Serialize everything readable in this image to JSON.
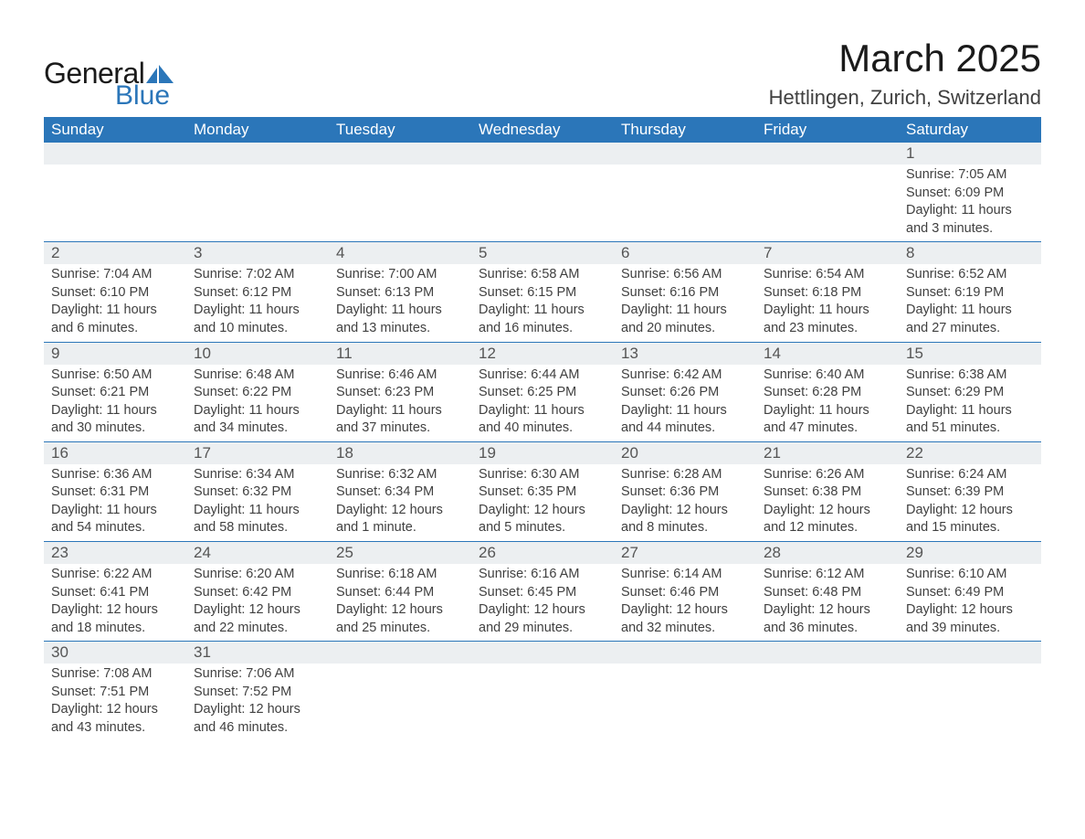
{
  "logo": {
    "text_general": "General",
    "text_blue": "Blue",
    "sail_color": "#2b76b9"
  },
  "title": "March 2025",
  "location": "Hettlingen, Zurich, Switzerland",
  "colors": {
    "header_bg": "#2b76b9",
    "header_text": "#ffffff",
    "daynum_bg": "#eceff1",
    "row_divider": "#2b76b9",
    "body_text": "#404040",
    "page_bg": "#ffffff"
  },
  "typography": {
    "title_fontsize": 42,
    "location_fontsize": 22,
    "weekday_fontsize": 17,
    "daynum_fontsize": 17,
    "detail_fontsize": 14.5,
    "font_family": "Arial"
  },
  "weekdays": [
    "Sunday",
    "Monday",
    "Tuesday",
    "Wednesday",
    "Thursday",
    "Friday",
    "Saturday"
  ],
  "weeks": [
    [
      null,
      null,
      null,
      null,
      null,
      null,
      {
        "d": "1",
        "sr": "Sunrise: 7:05 AM",
        "ss": "Sunset: 6:09 PM",
        "dl1": "Daylight: 11 hours",
        "dl2": "and 3 minutes."
      }
    ],
    [
      {
        "d": "2",
        "sr": "Sunrise: 7:04 AM",
        "ss": "Sunset: 6:10 PM",
        "dl1": "Daylight: 11 hours",
        "dl2": "and 6 minutes."
      },
      {
        "d": "3",
        "sr": "Sunrise: 7:02 AM",
        "ss": "Sunset: 6:12 PM",
        "dl1": "Daylight: 11 hours",
        "dl2": "and 10 minutes."
      },
      {
        "d": "4",
        "sr": "Sunrise: 7:00 AM",
        "ss": "Sunset: 6:13 PM",
        "dl1": "Daylight: 11 hours",
        "dl2": "and 13 minutes."
      },
      {
        "d": "5",
        "sr": "Sunrise: 6:58 AM",
        "ss": "Sunset: 6:15 PM",
        "dl1": "Daylight: 11 hours",
        "dl2": "and 16 minutes."
      },
      {
        "d": "6",
        "sr": "Sunrise: 6:56 AM",
        "ss": "Sunset: 6:16 PM",
        "dl1": "Daylight: 11 hours",
        "dl2": "and 20 minutes."
      },
      {
        "d": "7",
        "sr": "Sunrise: 6:54 AM",
        "ss": "Sunset: 6:18 PM",
        "dl1": "Daylight: 11 hours",
        "dl2": "and 23 minutes."
      },
      {
        "d": "8",
        "sr": "Sunrise: 6:52 AM",
        "ss": "Sunset: 6:19 PM",
        "dl1": "Daylight: 11 hours",
        "dl2": "and 27 minutes."
      }
    ],
    [
      {
        "d": "9",
        "sr": "Sunrise: 6:50 AM",
        "ss": "Sunset: 6:21 PM",
        "dl1": "Daylight: 11 hours",
        "dl2": "and 30 minutes."
      },
      {
        "d": "10",
        "sr": "Sunrise: 6:48 AM",
        "ss": "Sunset: 6:22 PM",
        "dl1": "Daylight: 11 hours",
        "dl2": "and 34 minutes."
      },
      {
        "d": "11",
        "sr": "Sunrise: 6:46 AM",
        "ss": "Sunset: 6:23 PM",
        "dl1": "Daylight: 11 hours",
        "dl2": "and 37 minutes."
      },
      {
        "d": "12",
        "sr": "Sunrise: 6:44 AM",
        "ss": "Sunset: 6:25 PM",
        "dl1": "Daylight: 11 hours",
        "dl2": "and 40 minutes."
      },
      {
        "d": "13",
        "sr": "Sunrise: 6:42 AM",
        "ss": "Sunset: 6:26 PM",
        "dl1": "Daylight: 11 hours",
        "dl2": "and 44 minutes."
      },
      {
        "d": "14",
        "sr": "Sunrise: 6:40 AM",
        "ss": "Sunset: 6:28 PM",
        "dl1": "Daylight: 11 hours",
        "dl2": "and 47 minutes."
      },
      {
        "d": "15",
        "sr": "Sunrise: 6:38 AM",
        "ss": "Sunset: 6:29 PM",
        "dl1": "Daylight: 11 hours",
        "dl2": "and 51 minutes."
      }
    ],
    [
      {
        "d": "16",
        "sr": "Sunrise: 6:36 AM",
        "ss": "Sunset: 6:31 PM",
        "dl1": "Daylight: 11 hours",
        "dl2": "and 54 minutes."
      },
      {
        "d": "17",
        "sr": "Sunrise: 6:34 AM",
        "ss": "Sunset: 6:32 PM",
        "dl1": "Daylight: 11 hours",
        "dl2": "and 58 minutes."
      },
      {
        "d": "18",
        "sr": "Sunrise: 6:32 AM",
        "ss": "Sunset: 6:34 PM",
        "dl1": "Daylight: 12 hours",
        "dl2": "and 1 minute."
      },
      {
        "d": "19",
        "sr": "Sunrise: 6:30 AM",
        "ss": "Sunset: 6:35 PM",
        "dl1": "Daylight: 12 hours",
        "dl2": "and 5 minutes."
      },
      {
        "d": "20",
        "sr": "Sunrise: 6:28 AM",
        "ss": "Sunset: 6:36 PM",
        "dl1": "Daylight: 12 hours",
        "dl2": "and 8 minutes."
      },
      {
        "d": "21",
        "sr": "Sunrise: 6:26 AM",
        "ss": "Sunset: 6:38 PM",
        "dl1": "Daylight: 12 hours",
        "dl2": "and 12 minutes."
      },
      {
        "d": "22",
        "sr": "Sunrise: 6:24 AM",
        "ss": "Sunset: 6:39 PM",
        "dl1": "Daylight: 12 hours",
        "dl2": "and 15 minutes."
      }
    ],
    [
      {
        "d": "23",
        "sr": "Sunrise: 6:22 AM",
        "ss": "Sunset: 6:41 PM",
        "dl1": "Daylight: 12 hours",
        "dl2": "and 18 minutes."
      },
      {
        "d": "24",
        "sr": "Sunrise: 6:20 AM",
        "ss": "Sunset: 6:42 PM",
        "dl1": "Daylight: 12 hours",
        "dl2": "and 22 minutes."
      },
      {
        "d": "25",
        "sr": "Sunrise: 6:18 AM",
        "ss": "Sunset: 6:44 PM",
        "dl1": "Daylight: 12 hours",
        "dl2": "and 25 minutes."
      },
      {
        "d": "26",
        "sr": "Sunrise: 6:16 AM",
        "ss": "Sunset: 6:45 PM",
        "dl1": "Daylight: 12 hours",
        "dl2": "and 29 minutes."
      },
      {
        "d": "27",
        "sr": "Sunrise: 6:14 AM",
        "ss": "Sunset: 6:46 PM",
        "dl1": "Daylight: 12 hours",
        "dl2": "and 32 minutes."
      },
      {
        "d": "28",
        "sr": "Sunrise: 6:12 AM",
        "ss": "Sunset: 6:48 PM",
        "dl1": "Daylight: 12 hours",
        "dl2": "and 36 minutes."
      },
      {
        "d": "29",
        "sr": "Sunrise: 6:10 AM",
        "ss": "Sunset: 6:49 PM",
        "dl1": "Daylight: 12 hours",
        "dl2": "and 39 minutes."
      }
    ],
    [
      {
        "d": "30",
        "sr": "Sunrise: 7:08 AM",
        "ss": "Sunset: 7:51 PM",
        "dl1": "Daylight: 12 hours",
        "dl2": "and 43 minutes."
      },
      {
        "d": "31",
        "sr": "Sunrise: 7:06 AM",
        "ss": "Sunset: 7:52 PM",
        "dl1": "Daylight: 12 hours",
        "dl2": "and 46 minutes."
      },
      null,
      null,
      null,
      null,
      null
    ]
  ]
}
